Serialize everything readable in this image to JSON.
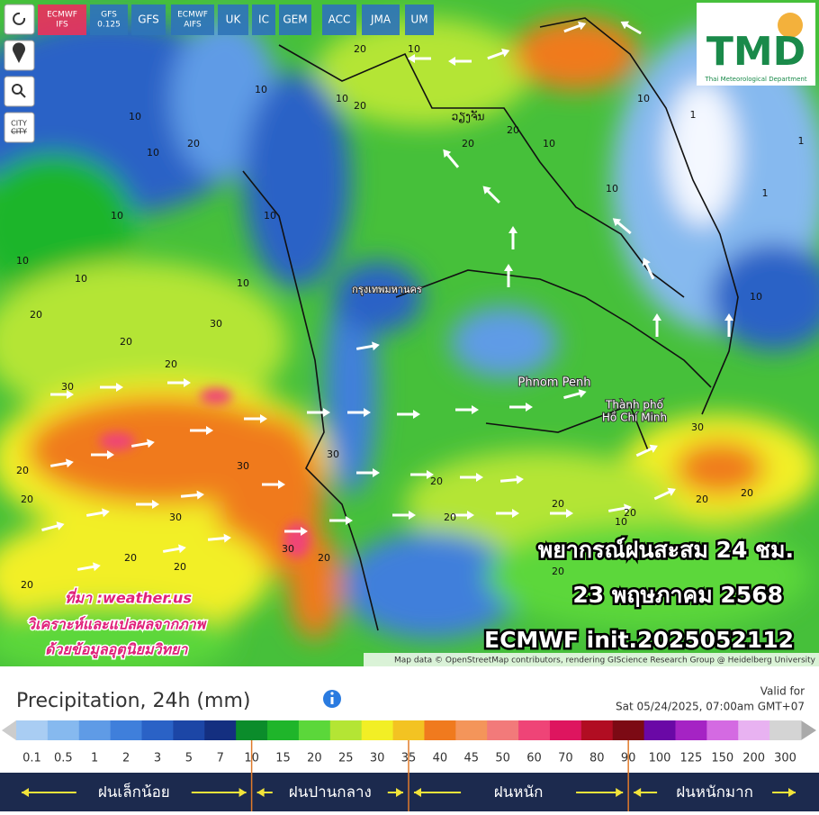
{
  "toolbar": {
    "models": [
      {
        "lines": [
          "ECMWF",
          "IFS"
        ]
      },
      {
        "lines": [
          "GFS",
          "0.125"
        ]
      },
      {
        "lines": [
          "GFS"
        ]
      },
      {
        "lines": [
          "ECMWF",
          "AIFS"
        ]
      },
      {
        "lines": [
          "UK"
        ]
      },
      {
        "lines": [
          "IC"
        ]
      },
      {
        "lines": [
          "GEM"
        ]
      },
      {
        "lines": [
          "ACC"
        ]
      },
      {
        "lines": [
          "JMA"
        ]
      },
      {
        "lines": [
          "UM"
        ]
      }
    ],
    "city": "CITY"
  },
  "logo": {
    "text": "TMD",
    "subtitle": "Thai Meteorological Department"
  },
  "map": {
    "places": [
      "กรุงเทพมหานคร",
      "ວຽງຈັນ",
      "Phnom Penh",
      "Thành phố",
      "Hồ Chí Minh"
    ],
    "contour_labels": [
      20,
      10,
      10,
      10,
      20,
      10,
      20,
      20,
      10,
      10,
      10,
      20,
      1,
      1,
      1,
      10,
      10,
      10,
      20,
      10,
      20,
      30,
      20,
      30,
      20,
      30,
      30,
      20,
      30,
      20,
      20,
      20,
      20,
      20,
      30,
      20,
      20,
      10,
      10,
      20,
      10,
      30,
      20,
      20,
      10,
      20
    ]
  },
  "overlay": {
    "title": "พยากรณ์ฝนสะสม 24 ชม.",
    "date": "23 พฤษภาคม 2568",
    "model": "ECMWF init.2025052112"
  },
  "credit": [
    "ที่มา :weather.us",
    "วิเคราะห์และแปลผลจากภาพ",
    "ด้วยข้อมูลอุตุนิยมวิทยา"
  ],
  "attribution": "Map data © OpenStreetMap contributors, rendering GIScience Research Group @ Heidelberg University",
  "legend": {
    "title": "Precipitation, 24h (mm)",
    "valid_label": "Valid for",
    "valid_time": "Sat 05/24/2025, 07:00am GMT+07",
    "stops": [
      {
        "value": 0.1,
        "color": "#a9cdf3"
      },
      {
        "value": 0.5,
        "color": "#86b9ef"
      },
      {
        "value": 1,
        "color": "#5f9be6"
      },
      {
        "value": 2,
        "color": "#3f7fdb"
      },
      {
        "value": 3,
        "color": "#2a62c6"
      },
      {
        "value": 5,
        "color": "#1c46a6"
      },
      {
        "value": 7,
        "color": "#142f80"
      },
      {
        "value": 10,
        "color": "#0b8c2b"
      },
      {
        "value": 15,
        "color": "#1fb52a"
      },
      {
        "value": 20,
        "color": "#5bd73a"
      },
      {
        "value": 25,
        "color": "#b4e534"
      },
      {
        "value": 30,
        "color": "#f2ef25"
      },
      {
        "value": 35,
        "color": "#f3c322"
      },
      {
        "value": 40,
        "color": "#f07a1e"
      },
      {
        "value": 45,
        "color": "#f4955a"
      },
      {
        "value": 50,
        "color": "#f27a7a"
      },
      {
        "value": 60,
        "color": "#ef4477"
      },
      {
        "value": 70,
        "color": "#de155f"
      },
      {
        "value": 80,
        "color": "#b10d22"
      },
      {
        "value": 90,
        "color": "#7c0a14"
      },
      {
        "value": 100,
        "color": "#6a08a6"
      },
      {
        "value": 125,
        "color": "#a523c4"
      },
      {
        "value": 150,
        "color": "#d46ae2"
      },
      {
        "value": 200,
        "color": "#e8b2f1"
      },
      {
        "value": 300,
        "color": "#d4d4d4"
      }
    ],
    "categories": [
      {
        "label": "ฝนเล็กน้อย",
        "from": 0.1,
        "to": 10
      },
      {
        "label": "ฝนปานกลาง",
        "from": 10,
        "to": 35
      },
      {
        "label": "ฝนหนัก",
        "from": 35,
        "to": 90
      },
      {
        "label": "ฝนหนักมาก",
        "from": 90,
        "to": 300
      }
    ]
  }
}
